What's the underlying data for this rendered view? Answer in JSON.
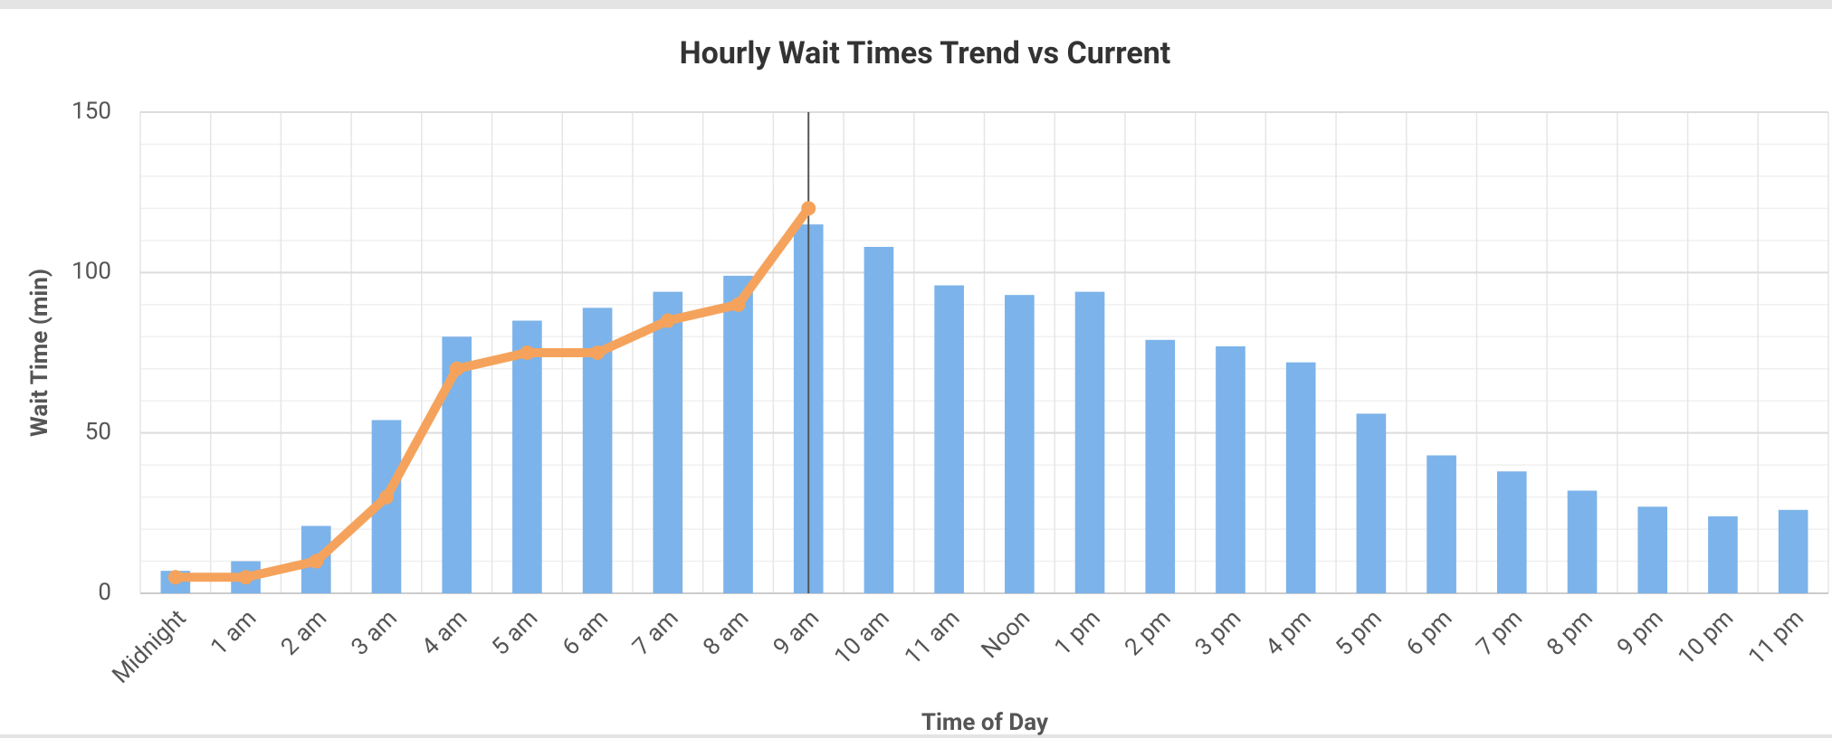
{
  "chart_data": {
    "type": "bar_line",
    "title": "Hourly Wait Times Trend vs Current",
    "x_label": "Time of Day",
    "y_label": "Wait Time (min)",
    "categories": [
      "Midnight",
      "1 am",
      "2 am",
      "3 am",
      "4 am",
      "5 am",
      "6 am",
      "7 am",
      "8 am",
      "9 am",
      "10 am",
      "11 am",
      "Noon",
      "1 pm",
      "2 pm",
      "3 pm",
      "4 pm",
      "5 pm",
      "6 pm",
      "7 pm",
      "8 pm",
      "9 pm",
      "10 pm",
      "11 pm"
    ],
    "series": [
      {
        "type": "bar",
        "color": "#7cb3ea",
        "values": [
          7,
          10,
          21,
          54,
          80,
          85,
          89,
          94,
          99,
          115,
          108,
          96,
          93,
          94,
          79,
          77,
          72,
          56,
          43,
          38,
          32,
          27,
          24,
          26
        ]
      },
      {
        "type": "line",
        "color": "#f5a35c",
        "values": [
          5,
          5,
          10,
          30,
          70,
          75,
          75,
          85,
          90,
          120,
          null,
          null,
          null,
          null,
          null,
          null,
          null,
          null,
          null,
          null,
          null,
          null,
          null,
          null
        ]
      }
    ],
    "ylim": [
      0,
      150
    ],
    "yticks": [
      0,
      50,
      100,
      150
    ],
    "minor_yticks": [
      10,
      20,
      30,
      40,
      60,
      70,
      80,
      90,
      110,
      120,
      130,
      140
    ],
    "grid": true
  }
}
